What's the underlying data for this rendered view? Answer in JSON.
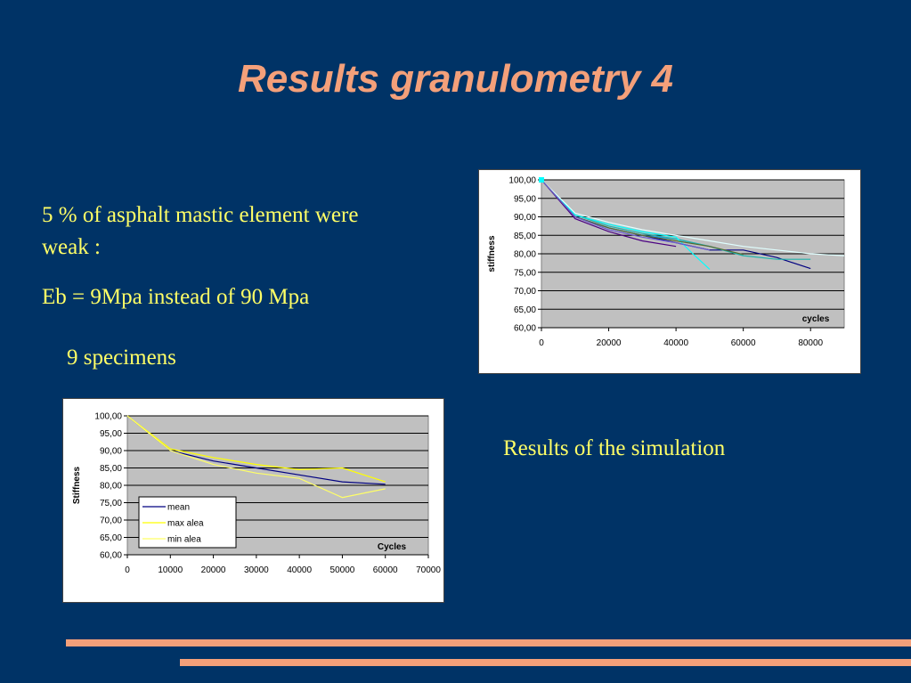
{
  "slide": {
    "title": "Results granulometry 4",
    "text_weak": "5 % of asphalt mastic element were weak :",
    "text_eb": "Eb = 9Mpa instead of 90 Mpa",
    "text_specimens": "9 specimens",
    "text_simulation": "Results of the simulation"
  },
  "colors": {
    "background": "#003366",
    "title": "#f4a07a",
    "text": "#ffff66",
    "plot_area": "#c0c0c0"
  },
  "chart_data": [
    {
      "type": "line",
      "xlabel": "cycles",
      "ylabel": "stiffness",
      "xlim": [
        0,
        90000
      ],
      "ylim": [
        60,
        100
      ],
      "xticks": [
        "0",
        "20000",
        "40000",
        "60000",
        "80000"
      ],
      "yticks": [
        "60,00",
        "65,00",
        "70,00",
        "75,00",
        "80,00",
        "85,00",
        "90,00",
        "95,00",
        "100,00"
      ],
      "grid": true,
      "series": [
        {
          "color": "#000080",
          "x": [
            0,
            10000,
            20000,
            30000,
            40000,
            50000,
            60000,
            70000,
            80000
          ],
          "y": [
            100,
            90,
            87,
            85,
            83,
            81,
            81,
            79,
            76
          ]
        },
        {
          "color": "#4b0082",
          "x": [
            0,
            10000,
            20000,
            30000,
            40000
          ],
          "y": [
            100,
            89.5,
            86,
            83.5,
            82
          ]
        },
        {
          "color": "#1e90ff",
          "x": [
            0,
            10000,
            20000,
            30000,
            40000,
            50000,
            60000
          ],
          "y": [
            100,
            90,
            87,
            85,
            84,
            82,
            79.5
          ]
        },
        {
          "color": "#20b2aa",
          "x": [
            0,
            10000,
            20000,
            30000,
            40000,
            50000,
            60000,
            70000,
            80000
          ],
          "y": [
            100,
            90.5,
            87.5,
            85.5,
            84,
            82,
            79.5,
            78.5,
            78.5
          ]
        },
        {
          "color": "#00ffff",
          "x": [
            0,
            10000,
            20000,
            30000,
            40000,
            45000,
            50000
          ],
          "y": [
            100,
            90.5,
            88,
            86,
            84.5,
            80,
            75.8
          ]
        },
        {
          "color": "#e0ffff",
          "x": [
            0,
            10000,
            20000,
            30000,
            40000,
            50000,
            60000,
            70000,
            80000,
            90000
          ],
          "y": [
            100,
            91,
            88.5,
            86.5,
            85,
            83.5,
            82,
            81,
            80,
            79.5
          ]
        },
        {
          "color": "#556b2f",
          "x": [
            0,
            10000,
            20000,
            30000,
            40000,
            50000,
            60000
          ],
          "y": [
            100,
            90,
            87,
            85,
            83.5,
            82,
            79.8
          ]
        },
        {
          "color": "#6a5acd",
          "x": [
            0,
            10000,
            20000,
            30000,
            40000,
            50000
          ],
          "y": [
            100,
            90,
            86.5,
            84.5,
            83,
            81
          ]
        }
      ]
    },
    {
      "type": "line",
      "xlabel": "Cycles",
      "ylabel": "Stiffness",
      "xlim": [
        0,
        70000
      ],
      "ylim": [
        60,
        100
      ],
      "xticks": [
        "0",
        "10000",
        "20000",
        "30000",
        "40000",
        "50000",
        "60000",
        "70000"
      ],
      "yticks": [
        "60,00",
        "65,00",
        "70,00",
        "75,00",
        "80,00",
        "85,00",
        "90,00",
        "95,00",
        "100,00"
      ],
      "grid": true,
      "legend_position": "left",
      "series": [
        {
          "name": "mean",
          "color": "#000080",
          "x": [
            0,
            10000,
            20000,
            30000,
            40000,
            50000,
            60000
          ],
          "y": [
            100,
            90,
            87,
            85,
            83,
            81,
            80.3
          ]
        },
        {
          "name": "max alea",
          "color": "#ffff00",
          "x": [
            0,
            10000,
            20000,
            30000,
            40000,
            50000,
            60000
          ],
          "y": [
            100,
            90.5,
            88,
            86,
            84.5,
            85,
            81
          ]
        },
        {
          "name": "min alea",
          "color": "#ffff66",
          "x": [
            0,
            10000,
            20000,
            30000,
            40000,
            50000,
            60000
          ],
          "y": [
            100,
            90,
            86,
            83.5,
            82,
            76.5,
            79
          ]
        }
      ]
    }
  ]
}
